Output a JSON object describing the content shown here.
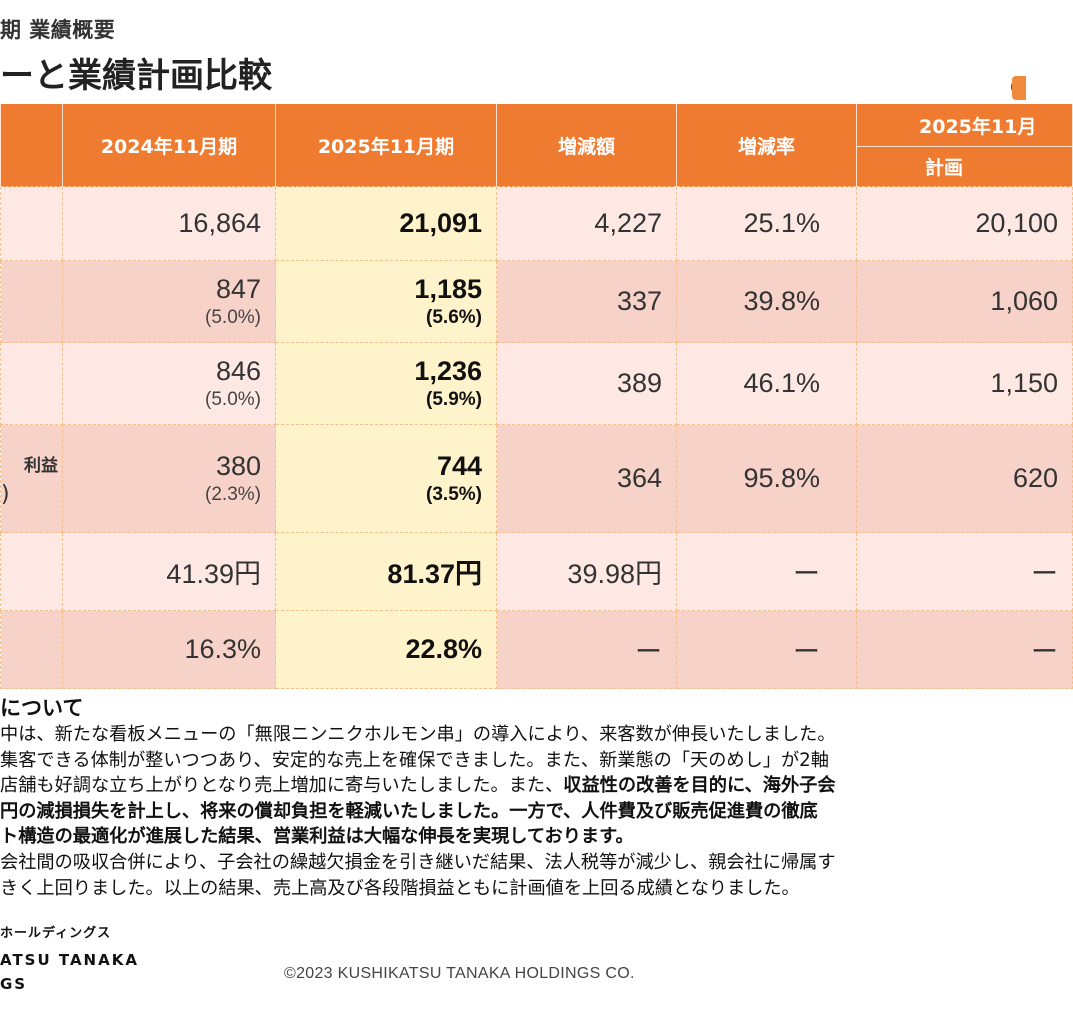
{
  "header": {
    "subtitle": "期 業績概要",
    "title": "ーと業績計画比較",
    "unit_note": "（"
  },
  "table": {
    "columns": [
      "2024年11月期",
      "2025年11月期",
      "増減額",
      "増減率"
    ],
    "plan_group": "2025年11月",
    "plan_sub": "計画",
    "rows": [
      {
        "label_a": "",
        "label_b": "",
        "prev": "16,864",
        "prev_sub": "",
        "cur": "21,091",
        "cur_sub": "",
        "diff": "4,227",
        "rate": "25.1%",
        "plan": "20,100"
      },
      {
        "label_a": "",
        "label_b": "",
        "prev": "847",
        "prev_sub": "(5.0%)",
        "cur": "1,185",
        "cur_sub": "(5.6%)",
        "diff": "337",
        "rate": "39.8%",
        "plan": "1,060"
      },
      {
        "label_a": "",
        "label_b": "",
        "prev": "846",
        "prev_sub": "(5.0%)",
        "cur": "1,236",
        "cur_sub": "(5.9%)",
        "diff": "389",
        "rate": "46.1%",
        "plan": "1,150"
      },
      {
        "label_a": "利益",
        "label_b": ")",
        "prev": "380",
        "prev_sub": "(2.3%)",
        "cur": "744",
        "cur_sub": "(3.5%)",
        "diff": "364",
        "rate": "95.8%",
        "plan": "620"
      },
      {
        "label_a": "",
        "label_b": "",
        "prev": "41.39円",
        "prev_sub": "",
        "cur": "81.37円",
        "cur_sub": "",
        "diff": "39.98円",
        "rate": "ー",
        "plan": "ー"
      },
      {
        "label_a": "",
        "label_b": "",
        "prev": "16.3%",
        "prev_sub": "",
        "cur": "22.8%",
        "cur_sub": "",
        "diff": "ー",
        "rate": "ー",
        "plan": "ー"
      }
    ]
  },
  "notes": {
    "heading": "について",
    "l1": "中は、新たな看板メニューの「無限ニンニクホルモン串」の導入により、来客数が伸長いたしました。",
    "l2": "集客できる体制が整いつつあり、安定的な売上を確保できました。また、新業態の「天のめし」が2軸",
    "l3a": "店舗も好調な立ち上がりとなり売上増加に寄与いたしました。また、",
    "l3b": "収益性の改善を目的に、海外子会",
    "l4": "円の減損損失を計上し、将来の償却負担を軽減いたしました。一方で、人件費及び販売促進費の徹底",
    "l5": "ト構造の最適化が進展した結果、営業利益は大幅な伸長を実現しております。",
    "l6": "会社間の吸収合併により、子会社の繰越欠損金を引き継いだ結果、法人税等が減少し、親会社に帰属す",
    "l7": "きく上回りました。以上の結果、売上高及び各段階損益ともに計画値を上回る成績となりました。"
  },
  "footer": {
    "logo_kana": "ホールディングス",
    "logo_l2": "ATSU TANAKA",
    "logo_l3": "GS",
    "copyright": "©2023 KUSHIKATSU TANAKA HOLDINGS CO."
  },
  "colors": {
    "accent": "#ee7b30",
    "row_light": "#fde8e4",
    "row_dark": "#f7d2c8",
    "highlight": "#fff3cc"
  }
}
